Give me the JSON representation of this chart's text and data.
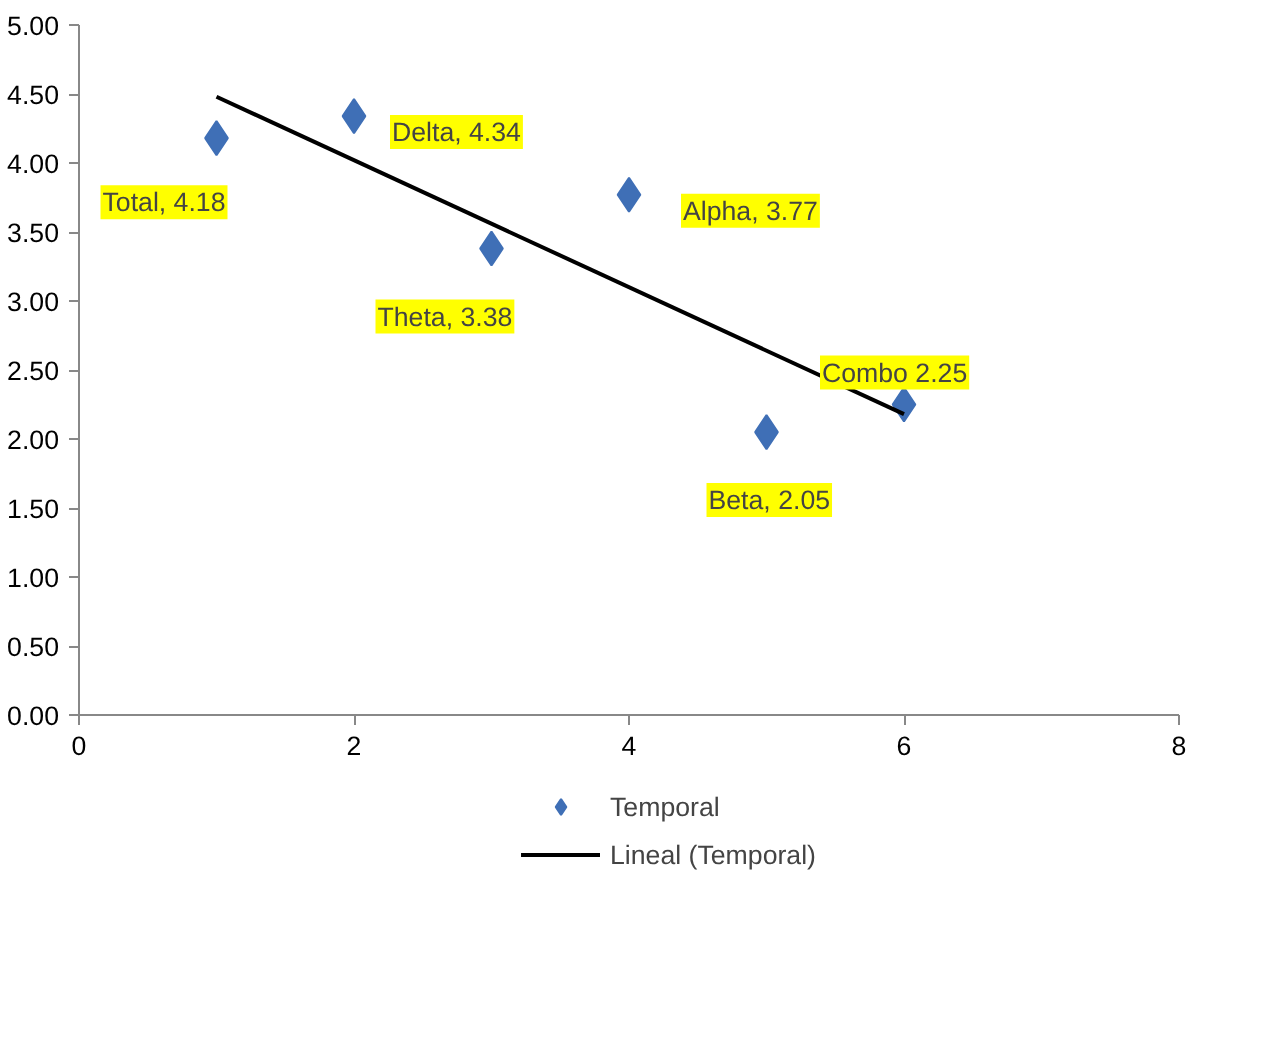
{
  "chart_data": {
    "type": "scatter",
    "x": [
      1,
      2,
      3,
      4,
      5,
      6
    ],
    "series": [
      {
        "name": "Temporal",
        "color": "#3f6fb6",
        "marker": "diamond",
        "values": [
          4.18,
          4.34,
          3.38,
          3.77,
          2.05,
          2.25
        ]
      },
      {
        "name": "Lineal (Temporal)",
        "type": "line",
        "color": "#000000",
        "x": [
          1,
          6
        ],
        "values": [
          4.48,
          2.18
        ]
      }
    ],
    "xlim": [
      0,
      8
    ],
    "xticks": [
      0,
      2,
      4,
      6,
      8
    ],
    "ylim": [
      0,
      5
    ],
    "yticks": [
      {
        "value": 0,
        "label": "0.00"
      },
      {
        "value": 0.5,
        "label": "0.50"
      },
      {
        "value": 1,
        "label": "1.00"
      },
      {
        "value": 1.5,
        "label": "1.50"
      },
      {
        "value": 2,
        "label": "2.00"
      },
      {
        "value": 2.5,
        "label": "2.50"
      },
      {
        "value": 3,
        "label": "3.00"
      },
      {
        "value": 3.5,
        "label": "3.50"
      },
      {
        "value": 4,
        "label": "4.00"
      },
      {
        "value": 4.5,
        "label": "4.50"
      },
      {
        "value": 5,
        "label": "5.00"
      }
    ],
    "annotations": [
      {
        "text": "Total, 4.18",
        "x": 1,
        "y": 4.18
      },
      {
        "text": "Delta, 4.34",
        "x": 2,
        "y": 4.34
      },
      {
        "text": "Theta, 3.38",
        "x": 3,
        "y": 3.38
      },
      {
        "text": "Alpha, 3.77",
        "x": 4,
        "y": 3.77
      },
      {
        "text": "Beta, 2.05",
        "x": 5,
        "y": 2.05
      },
      {
        "text": "Combo 2.25",
        "x": 6,
        "y": 2.25
      }
    ],
    "grid": false,
    "legend": "bottom",
    "line_style": "solid"
  }
}
